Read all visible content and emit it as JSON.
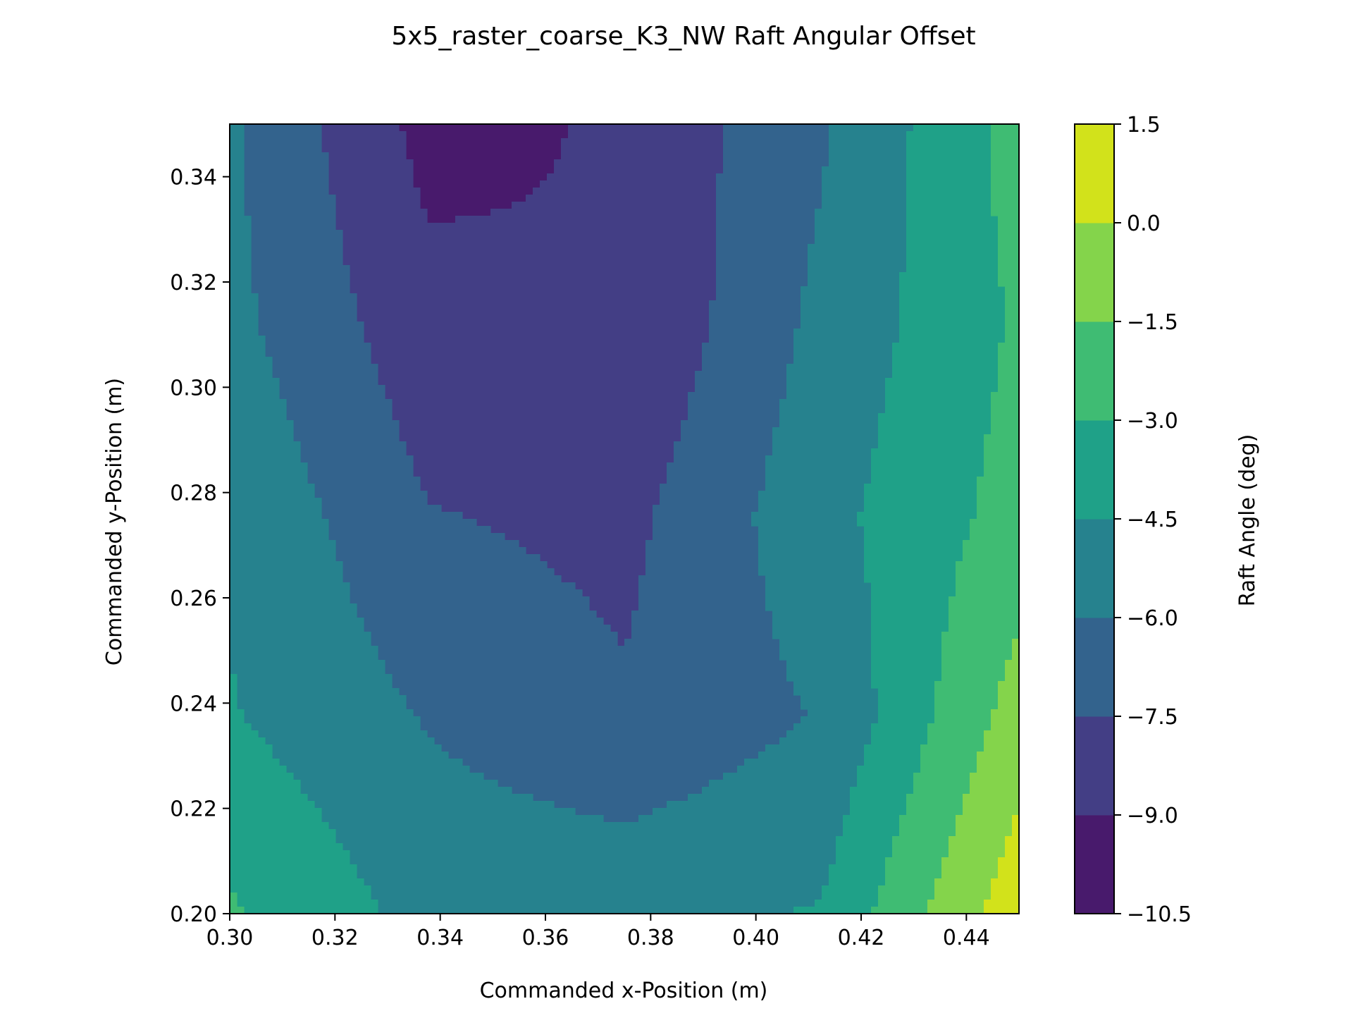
{
  "chart_data": {
    "type": "heatmap",
    "title": "5x5_raster_coarse_K3_NW Raft Angular Offset",
    "xlabel": "Commanded x-Position (m)",
    "ylabel": "Commanded y-Position (m)",
    "colorbar_label": "Raft Angle (deg)",
    "xlim": [
      0.3,
      0.45
    ],
    "ylim": [
      0.2,
      0.35
    ],
    "x_ticks": [
      "0.30",
      "0.32",
      "0.34",
      "0.36",
      "0.38",
      "0.40",
      "0.42",
      "0.44"
    ],
    "y_ticks": [
      "0.20",
      "0.22",
      "0.24",
      "0.26",
      "0.28",
      "0.30",
      "0.32",
      "0.34"
    ],
    "colorbar_ticks": [
      "1.5",
      "0.0",
      "−1.5",
      "−3.0",
      "−4.5",
      "−6.0",
      "−7.5",
      "−9.0",
      "−10.5"
    ],
    "levels": [
      -10.5,
      -9.0,
      -7.5,
      -6.0,
      -4.5,
      -3.0,
      -1.5,
      0.0,
      1.5
    ],
    "level_colors": [
      "#481a6c",
      "#433e85",
      "#33638d",
      "#26828e",
      "#1fa188",
      "#3fbc73",
      "#84d44b",
      "#d2e21b"
    ],
    "grid": false,
    "legend": "colorbar-right",
    "x": [
      0.3,
      0.3375,
      0.375,
      0.4125,
      0.45
    ],
    "y": [
      0.2,
      0.2375,
      0.275,
      0.3125,
      0.35
    ],
    "z": [
      [
        -2.8,
        -5.0,
        -4.9,
        -4.4,
        1.0
      ],
      [
        -4.4,
        -6.1,
        -7.3,
        -5.9,
        -0.8
      ],
      [
        -4.7,
        -7.4,
        -7.9,
        -5.0,
        -2.4
      ],
      [
        -5.6,
        -8.5,
        -9.0,
        -5.6,
        -2.8
      ],
      [
        -5.8,
        -9.5,
        -8.8,
        -6.2,
        -2.4
      ]
    ]
  }
}
